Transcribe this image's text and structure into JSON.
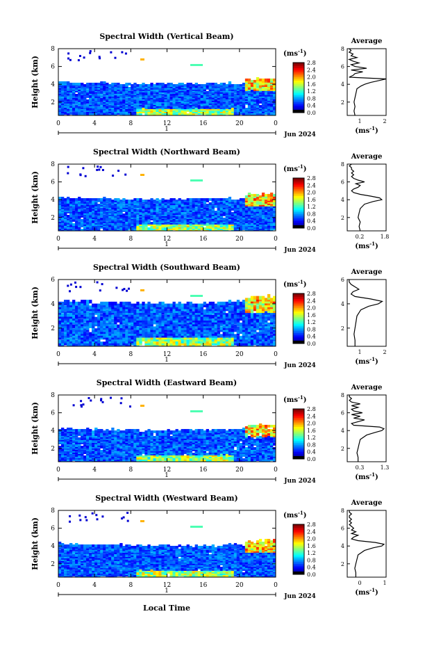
{
  "figure": {
    "xlabel": "Local Time",
    "date_label": "Jun 2024",
    "day_label": "1",
    "units_label": "(ms",
    "units_exp": "-1",
    "units_close": ")",
    "avg_title": "Average",
    "avg_units": "(ms",
    "height_label": "Height (km)",
    "x_ticks": [
      "0",
      "4",
      "8",
      "12",
      "16",
      "20",
      "0"
    ],
    "y_ticks": [
      "2",
      "4",
      "6",
      "8"
    ],
    "colorbar_ticks": [
      "0.0",
      "0.4",
      "0.8",
      "1.2",
      "1.6",
      "2.0",
      "2.4",
      "2.8"
    ]
  },
  "chart_data": [
    {
      "type": "heatmap",
      "title": "Spectral Width (Vertical Beam)",
      "xlabel": "",
      "ylabel": "Height (km)",
      "xlim": [
        0,
        24
      ],
      "ylim": [
        0.5,
        8
      ],
      "colorbar": {
        "label": "(ms-1)",
        "range": [
          0.0,
          2.8
        ]
      },
      "average_profile": {
        "title": "Average",
        "xlabel": "(ms-1)",
        "xlim": [
          0,
          2
        ],
        "x_ticks": [
          "1",
          "2"
        ],
        "heights": [
          0.5,
          1,
          1.5,
          2,
          2.5,
          3,
          3.5,
          3.8,
          4.0,
          4.2,
          4.4,
          4.6,
          4.8,
          5.0,
          5.2,
          5.4,
          5.6,
          5.8,
          6.0,
          6.2,
          6.4,
          6.6,
          6.8,
          7.0,
          7.2,
          7.4,
          7.6,
          7.8,
          8.0
        ],
        "values": [
          0.4,
          0.35,
          0.4,
          0.35,
          0.4,
          0.45,
          0.5,
          0.7,
          0.9,
          1.2,
          1.6,
          2.0,
          0.1,
          0.3,
          0.4,
          0.8,
          0.2,
          1.0,
          0.4,
          0.2,
          0.6,
          0.3,
          0.1,
          0.5,
          0.2,
          0.3,
          0.1,
          0.2,
          0.1
        ]
      }
    },
    {
      "type": "heatmap",
      "title": "Spectral Width (Northward Beam)",
      "xlabel": "",
      "ylabel": "Height (km)",
      "xlim": [
        0,
        24
      ],
      "ylim": [
        0.5,
        8
      ],
      "colorbar": {
        "label": "(ms-1)",
        "range": [
          0.0,
          2.8
        ]
      },
      "average_profile": {
        "title": "Average",
        "xlabel": "(ms-1)",
        "xlim": [
          0,
          1.8
        ],
        "x_ticks": [
          "0.2",
          "1.8"
        ],
        "heights": [
          0.5,
          1,
          1.5,
          2,
          2.5,
          3,
          3.5,
          3.8,
          4.0,
          4.2,
          4.4,
          4.6,
          4.8,
          5.0,
          5.2,
          5.4,
          5.6,
          5.8,
          6.0,
          6.2,
          6.4,
          6.6,
          6.8,
          7.0,
          7.2,
          7.4,
          7.6,
          7.8,
          8.0
        ],
        "values": [
          0.6,
          0.55,
          0.6,
          0.5,
          0.55,
          0.6,
          0.8,
          1.2,
          1.6,
          1.5,
          1.1,
          0.6,
          0.3,
          0.2,
          0.3,
          0.5,
          0.6,
          0.4,
          0.8,
          0.5,
          0.3,
          0.2,
          0.3,
          0.2,
          0.3,
          0.2,
          0.2,
          0.1,
          0.2
        ]
      }
    },
    {
      "type": "heatmap",
      "title": "Spectral Width (Southward Beam)",
      "xlabel": "",
      "ylabel": "Height (km)",
      "xlim": [
        0,
        24
      ],
      "ylim": [
        0.5,
        6
      ],
      "colorbar": {
        "label": "(ms-1)",
        "range": [
          0.0,
          2.8
        ]
      },
      "average_profile": {
        "title": "Average",
        "xlabel": "(ms-1)",
        "xlim": [
          0,
          2
        ],
        "x_ticks": [
          "1",
          "2"
        ],
        "heights": [
          0.5,
          1,
          1.5,
          2,
          2.5,
          3,
          3.5,
          3.8,
          4.0,
          4.2,
          4.4,
          4.6,
          4.8,
          5.0,
          5.2,
          5.4,
          5.6,
          5.8,
          6.0
        ],
        "values": [
          0.4,
          0.4,
          0.35,
          0.4,
          0.45,
          0.5,
          0.7,
          1.1,
          1.6,
          1.8,
          1.2,
          0.4,
          0.2,
          0.3,
          0.6,
          0.4,
          0.2,
          0.1,
          0.1
        ]
      }
    },
    {
      "type": "heatmap",
      "title": "Spectral Width (Eastward Beam)",
      "xlabel": "",
      "ylabel": "Height (km)",
      "xlim": [
        0,
        24
      ],
      "ylim": [
        0.5,
        8
      ],
      "colorbar": {
        "label": "(ms-1)",
        "range": [
          0.0,
          2.8
        ]
      },
      "average_profile": {
        "title": "Average",
        "xlabel": "(ms-1)",
        "xlim": [
          0,
          1.8
        ],
        "x_ticks": [
          "0.3",
          "1.3"
        ],
        "heights": [
          0.5,
          1,
          1.5,
          2,
          2.5,
          3,
          3.5,
          3.8,
          4.0,
          4.2,
          4.4,
          4.6,
          4.8,
          5.0,
          5.2,
          5.4,
          5.6,
          5.8,
          6.0,
          6.2,
          6.4,
          6.6,
          6.8,
          7.0,
          7.2,
          7.4,
          7.6,
          7.8,
          8.0
        ],
        "values": [
          0.5,
          0.5,
          0.45,
          0.5,
          0.55,
          0.6,
          0.9,
          1.3,
          1.6,
          1.7,
          1.5,
          0.3,
          0.2,
          0.5,
          0.8,
          0.3,
          0.6,
          0.2,
          0.7,
          0.3,
          0.2,
          0.5,
          0.2,
          0.6,
          0.2,
          0.1,
          0.2,
          0.1,
          0.1
        ]
      }
    },
    {
      "type": "heatmap",
      "title": "Spectral Width (Westward Beam)",
      "xlabel": "Local Time",
      "ylabel": "Height (km)",
      "xlim": [
        0,
        24
      ],
      "ylim": [
        0.5,
        8
      ],
      "colorbar": {
        "label": "(ms-1)",
        "range": [
          0.0,
          2.8
        ]
      },
      "average_profile": {
        "title": "Average",
        "xlabel": "(ms-1)",
        "xlim": [
          0,
          1.8
        ],
        "x_ticks": [
          "0",
          "1"
        ],
        "heights": [
          0.5,
          1,
          1.5,
          2,
          2.5,
          3,
          3.5,
          3.8,
          4.0,
          4.2,
          4.4,
          4.6,
          4.8,
          5.0,
          5.2,
          5.4,
          5.6,
          5.8,
          6.0,
          6.2,
          6.4,
          6.6,
          6.8,
          7.0,
          7.2,
          7.4,
          7.6,
          7.8,
          8.0
        ],
        "values": [
          0.4,
          0.4,
          0.35,
          0.4,
          0.45,
          0.5,
          0.8,
          1.2,
          1.6,
          1.7,
          1.3,
          0.5,
          0.2,
          0.3,
          0.5,
          0.2,
          0.4,
          0.2,
          0.3,
          0.2,
          0.1,
          0.2,
          0.1,
          0.2,
          0.1,
          0.1,
          0.2,
          0.1,
          0.1
        ]
      }
    }
  ]
}
